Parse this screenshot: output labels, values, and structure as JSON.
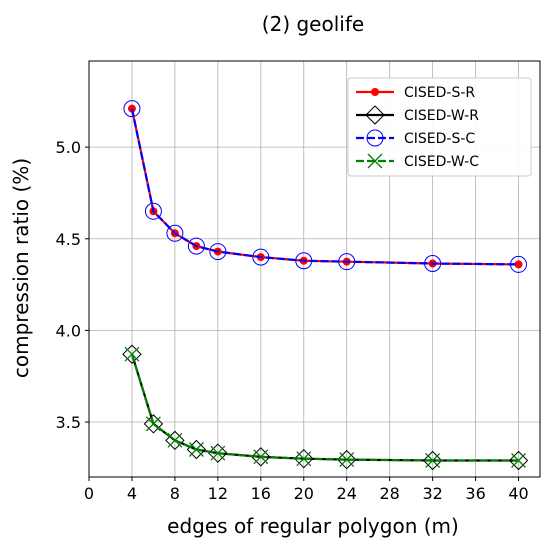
{
  "chart_data": {
    "type": "line",
    "title": "(2) geolife",
    "xlabel": "edges of regular polygon (m)",
    "ylabel": "compression ratio (%)",
    "xlim": [
      0,
      42
    ],
    "ylim": [
      3.2,
      5.47
    ],
    "xticks": [
      0,
      4,
      8,
      12,
      16,
      20,
      24,
      28,
      32,
      36,
      40
    ],
    "yticks": [
      3.5,
      4.0,
      4.5,
      5.0
    ],
    "ytick_labels": [
      "3.5",
      "4.0",
      "4.5",
      "5.0"
    ],
    "grid": true,
    "legend_position": "top-right",
    "x": [
      4,
      6,
      8,
      10,
      12,
      16,
      20,
      24,
      32,
      40
    ],
    "series": [
      {
        "name": "CISED-S-R",
        "color": "#ff0000",
        "linestyle": "solid",
        "marker": "dot",
        "values": [
          5.21,
          4.65,
          4.53,
          4.46,
          4.43,
          4.4,
          4.38,
          4.375,
          4.365,
          4.36
        ]
      },
      {
        "name": "CISED-W-R",
        "color": "#000000",
        "linestyle": "solid",
        "marker": "diamond",
        "values": [
          3.87,
          3.49,
          3.4,
          3.35,
          3.33,
          3.31,
          3.3,
          3.295,
          3.29,
          3.29
        ]
      },
      {
        "name": "CISED-S-C",
        "color": "#0000ff",
        "linestyle": "dashed",
        "marker": "circle",
        "values": [
          5.21,
          4.65,
          4.53,
          4.46,
          4.43,
          4.4,
          4.38,
          4.375,
          4.365,
          4.36
        ]
      },
      {
        "name": "CISED-W-C",
        "color": "#008000",
        "linestyle": "dashed",
        "marker": "x",
        "values": [
          3.87,
          3.49,
          3.4,
          3.35,
          3.33,
          3.31,
          3.3,
          3.295,
          3.29,
          3.29
        ]
      }
    ]
  }
}
